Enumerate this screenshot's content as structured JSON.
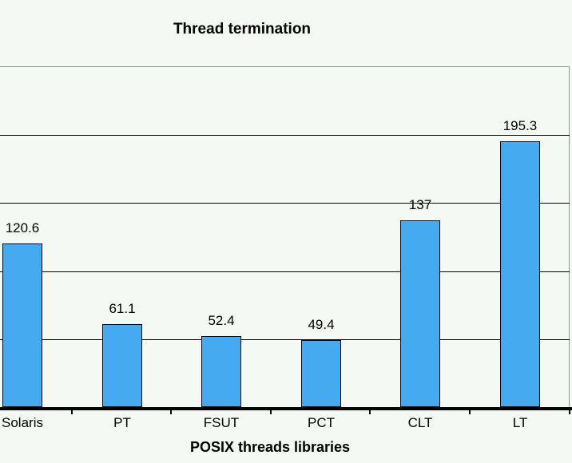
{
  "chart_data": {
    "type": "bar",
    "title": "Thread termination",
    "xlabel": "POSIX threads libraries",
    "ylabel": "",
    "categories": [
      "Solaris",
      "PT",
      "FSUT",
      "PCT",
      "CLT",
      "LT"
    ],
    "values": [
      120.6,
      61.1,
      52.4,
      49.4,
      137,
      195.3
    ],
    "value_labels": [
      "120.6",
      "61.1",
      "52.4",
      "49.4",
      "137",
      "195.3"
    ],
    "ylim": [
      0,
      250
    ],
    "gridline_step": 50,
    "grid": true,
    "legend": "none",
    "colors": {
      "bar_fill": "#45aaf0",
      "bar_border": "#000000",
      "gridline": "#000000",
      "plot_border": "#8b978d",
      "background": "#f4f9f3",
      "text": "#000000"
    }
  }
}
